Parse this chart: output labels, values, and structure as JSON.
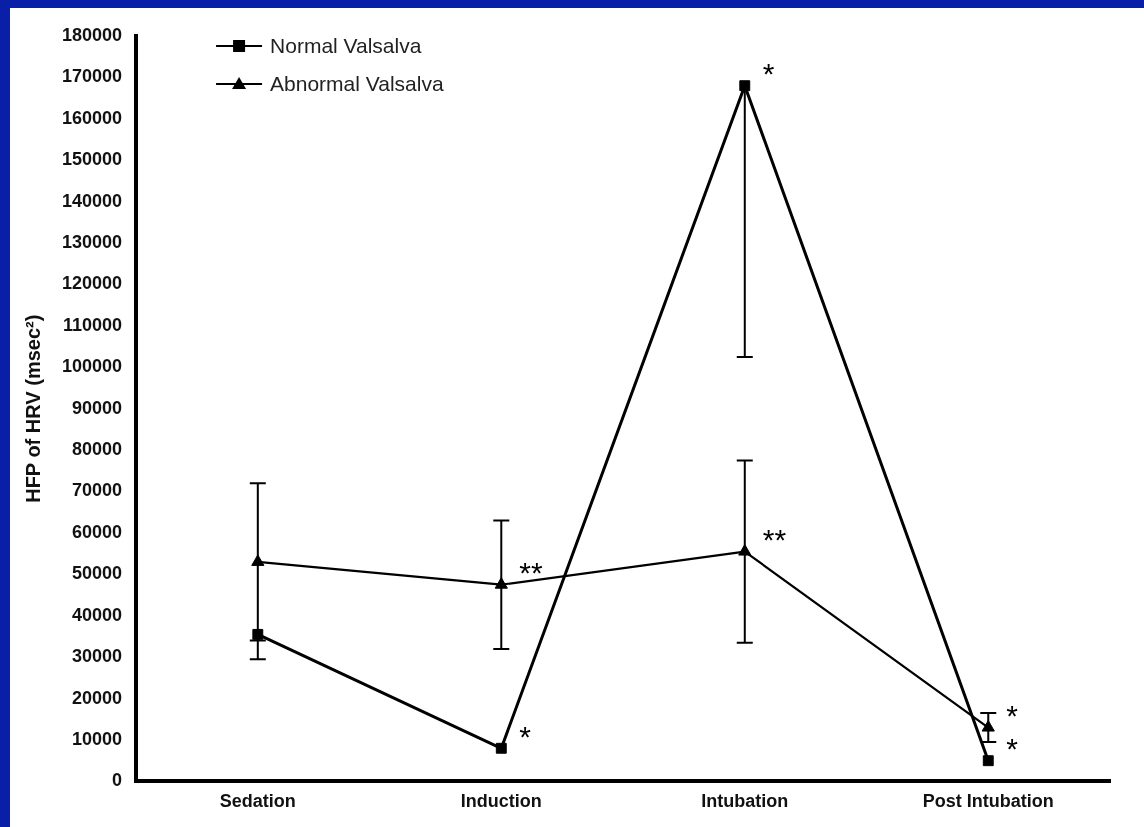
{
  "chart_data": {
    "type": "line",
    "ylabel": "HFP of HRV (msec²)",
    "categories": [
      "Sedation",
      "Induction",
      "Intubation",
      "Post Intubation"
    ],
    "series": [
      {
        "name": "Normal Valsalva",
        "color": "#000000",
        "marker": "square",
        "values": [
          35500,
          8000,
          168000,
          5000
        ],
        "errors": [
          [
            29500,
            35500
          ],
          null,
          [
            102500,
            168000
          ],
          null
        ]
      },
      {
        "name": "Abnormal Valsalva",
        "color": "#000000",
        "marker": "triangle",
        "values": [
          53000,
          47500,
          55500,
          13000
        ],
        "errors": [
          19000,
          15500,
          22000,
          3500
        ]
      }
    ],
    "ylim": [
      0,
      180000
    ],
    "yticks": [
      0,
      10000,
      20000,
      30000,
      40000,
      50000,
      60000,
      70000,
      80000,
      90000,
      100000,
      110000,
      120000,
      130000,
      140000,
      150000,
      160000,
      170000,
      180000
    ],
    "grid": false,
    "legend": "top left",
    "annotations": [
      {
        "text": "*",
        "x": "Induction",
        "y": 8000
      },
      {
        "text": "**",
        "x": "Induction",
        "y": 47500
      },
      {
        "text": "*",
        "x": "Intubation",
        "y": 168000
      },
      {
        "text": "**",
        "x": "Intubation",
        "y": 55500
      },
      {
        "text": "*",
        "x": "Post Intubation",
        "y": 13000
      },
      {
        "text": "*",
        "x": "Post Intubation",
        "y": 5000
      }
    ]
  }
}
